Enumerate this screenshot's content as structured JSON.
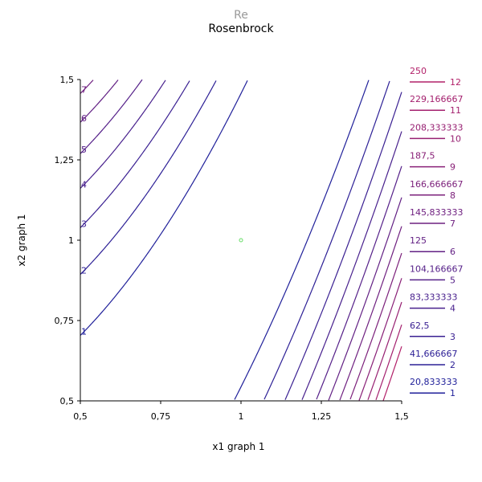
{
  "chart_data": {
    "type": "contour",
    "supertitle": "Re",
    "title": "Rosenbrock",
    "xlabel": "x1 graph 1",
    "ylabel": "x2 graph 1",
    "xlim": [
      0.5,
      1.5
    ],
    "ylim": [
      0.5,
      1.5
    ],
    "xticks": [
      "0,5",
      "0,75",
      "1",
      "1,25",
      "1,5"
    ],
    "yticks": [
      "0,5",
      "0,75",
      "1",
      "1,25",
      "1,5"
    ],
    "grid": false,
    "legend_position": "right",
    "marker_point": [
      1,
      1
    ],
    "levels": [
      {
        "index": "1",
        "value": "20,833333",
        "color": "#20209a"
      },
      {
        "index": "2",
        "value": "41,666667",
        "color": "#2d2096"
      },
      {
        "index": "3",
        "value": "62,5",
        "color": "#3a2092"
      },
      {
        "index": "4",
        "value": "83,333333",
        "color": "#48208d"
      },
      {
        "index": "5",
        "value": "104,166667",
        "color": "#552089"
      },
      {
        "index": "6",
        "value": "125",
        "color": "#622084"
      },
      {
        "index": "7",
        "value": "145,833333",
        "color": "#6f2080"
      },
      {
        "index": "8",
        "value": "166,666667",
        "color": "#7c207b"
      },
      {
        "index": "9",
        "value": "187,5",
        "color": "#892077"
      },
      {
        "index": "10",
        "value": "208,333333",
        "color": "#972072"
      },
      {
        "index": "11",
        "value": "229,166667",
        "color": "#a4206e"
      },
      {
        "index": "12",
        "value": "250",
        "color": "#b22069"
      }
    ]
  }
}
